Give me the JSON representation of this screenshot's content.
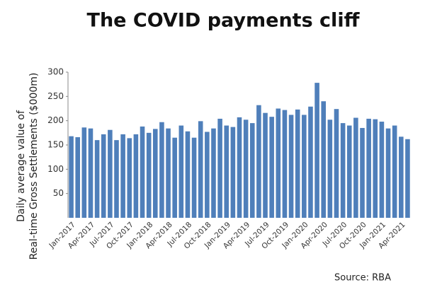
{
  "chart_data": {
    "type": "bar",
    "title": "The COVID payments cliff",
    "ylabel": [
      "Daily average value of",
      "Real-time Gross Settlements ($000m)"
    ],
    "source": "Source: RBA",
    "categories": [
      "Jan-2017",
      null,
      null,
      "Apr-2017",
      null,
      null,
      "Jul-2017",
      null,
      null,
      "Oct-2017",
      null,
      null,
      "Jan-2018",
      null,
      null,
      "Apr-2018",
      null,
      null,
      "Jul-2018",
      null,
      null,
      "Oct-2018",
      null,
      null,
      "Jan-2019",
      null,
      null,
      "Apr-2019",
      null,
      null,
      "Jul-2019",
      null,
      null,
      "Oct-2019",
      null,
      null,
      "Jan-2020",
      null,
      null,
      "Apr-2020",
      null,
      null,
      "Jul-2020",
      null,
      null,
      "Oct-2020",
      null,
      null,
      "Jan-2021",
      null,
      null,
      "Apr-2021",
      null
    ],
    "values": [
      168,
      166,
      186,
      184,
      160,
      172,
      181,
      160,
      172,
      164,
      172,
      188,
      175,
      183,
      197,
      184,
      165,
      190,
      178,
      165,
      199,
      177,
      184,
      204,
      190,
      187,
      207,
      202,
      195,
      232,
      216,
      208,
      225,
      222,
      212,
      223,
      212,
      229,
      278,
      240,
      202,
      224,
      195,
      190,
      206,
      185,
      204,
      203,
      198,
      184,
      190,
      167,
      162
    ],
    "color": "#4f7fba",
    "ylim": [
      0,
      300
    ],
    "yticks": [
      50,
      100,
      150,
      200,
      250,
      300
    ],
    "grid": false
  }
}
